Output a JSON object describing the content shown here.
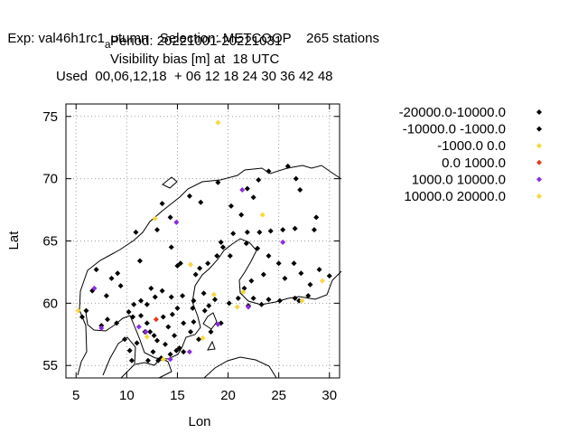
{
  "title": {
    "line1": "Exp: val46h1rc1",
    "line1_sub": "a",
    "line1_rest": "utumn   Selection: METCOOP    265 stations",
    "line2": "Period: 20221001-20221031",
    "line3": "Visibility bias [m] at  18 UTC",
    "line4": "Used  00,06,12,18  + 06 12 18 24 30 36 42 48"
  },
  "chart_data": {
    "type": "scatter",
    "xlabel": "Lon",
    "ylabel": "Lat",
    "xlim": [
      4,
      31
    ],
    "ylim": [
      54,
      76
    ],
    "xticks": [
      5,
      10,
      15,
      20,
      25,
      30
    ],
    "yticks": [
      55,
      60,
      65,
      70,
      75
    ],
    "grid": true,
    "legend_position": "right",
    "series": [
      {
        "name": "-20000.0-10000.0",
        "color": "#000000",
        "points": []
      },
      {
        "name": "-10000.0 -1000.0",
        "color": "#000000",
        "points": [
          [
            6.0,
            59.4
          ],
          [
            5.6,
            58.9
          ],
          [
            6.6,
            61.0
          ],
          [
            7.0,
            62.7
          ],
          [
            8.5,
            62.0
          ],
          [
            9.1,
            62.4
          ],
          [
            11.3,
            63.4
          ],
          [
            10.9,
            65.7
          ],
          [
            13.0,
            65.9
          ],
          [
            14.3,
            66.9
          ],
          [
            13.5,
            68.0
          ],
          [
            16.2,
            68.6
          ],
          [
            17.3,
            68.1
          ],
          [
            19.0,
            69.7
          ],
          [
            21.9,
            69.2
          ],
          [
            22.5,
            68.5
          ],
          [
            21.3,
            67.1
          ],
          [
            20.3,
            67.8
          ],
          [
            23.0,
            69.9
          ],
          [
            24.0,
            70.6
          ],
          [
            25.9,
            71.0
          ],
          [
            26.7,
            70.0
          ],
          [
            27.1,
            69.1
          ],
          [
            28.7,
            66.9
          ],
          [
            28.5,
            65.9
          ],
          [
            26.6,
            66.0
          ],
          [
            25.4,
            65.9
          ],
          [
            24.2,
            65.8
          ],
          [
            23.1,
            65.7
          ],
          [
            21.9,
            65.7
          ],
          [
            20.5,
            65.6
          ],
          [
            19.3,
            64.9
          ],
          [
            21.8,
            64.8
          ],
          [
            22.9,
            64.4
          ],
          [
            24.0,
            63.8
          ],
          [
            25.0,
            63.2
          ],
          [
            26.5,
            63.2
          ],
          [
            27.2,
            62.4
          ],
          [
            25.6,
            62.0
          ],
          [
            23.5,
            62.3
          ],
          [
            22.3,
            61.8
          ],
          [
            21.6,
            61.2
          ],
          [
            22.5,
            60.4
          ],
          [
            24.0,
            60.3
          ],
          [
            25.1,
            60.2
          ],
          [
            26.6,
            60.4
          ],
          [
            27.9,
            60.6
          ],
          [
            28.1,
            61.5
          ],
          [
            16.8,
            62.3
          ],
          [
            17.2,
            62.8
          ],
          [
            18.0,
            63.2
          ],
          [
            18.9,
            63.8
          ],
          [
            20.2,
            63.8
          ],
          [
            19.5,
            64.5
          ],
          [
            15.3,
            63.2
          ],
          [
            14.4,
            64.5
          ],
          [
            15.0,
            63.0
          ],
          [
            12.4,
            61.2
          ],
          [
            12.8,
            60.5
          ],
          [
            11.4,
            60.2
          ],
          [
            10.7,
            59.9
          ],
          [
            10.2,
            59.3
          ],
          [
            11.4,
            59.0
          ],
          [
            12.0,
            58.4
          ],
          [
            12.3,
            57.7
          ],
          [
            13.0,
            57.0
          ],
          [
            13.8,
            56.7
          ],
          [
            14.7,
            57.4
          ],
          [
            15.6,
            56.1
          ],
          [
            15.2,
            56.4
          ],
          [
            14.3,
            55.9
          ],
          [
            13.4,
            55.6
          ],
          [
            12.6,
            56.1
          ],
          [
            12.1,
            55.4
          ],
          [
            10.5,
            55.4
          ],
          [
            10.3,
            56.2
          ],
          [
            9.8,
            57.1
          ],
          [
            11.0,
            56.8
          ],
          [
            12.7,
            57.4
          ],
          [
            11.8,
            57.7
          ],
          [
            14.1,
            58.1
          ],
          [
            13.6,
            58.9
          ],
          [
            14.5,
            59.1
          ],
          [
            15.6,
            58.4
          ],
          [
            16.6,
            58.5
          ],
          [
            15.0,
            59.6
          ],
          [
            16.5,
            59.6
          ],
          [
            17.7,
            59.4
          ],
          [
            18.1,
            59.8
          ],
          [
            18.7,
            60.3
          ],
          [
            17.6,
            60.8
          ],
          [
            16.6,
            60.2
          ],
          [
            15.5,
            60.6
          ],
          [
            14.4,
            60.5
          ],
          [
            13.5,
            61.0
          ],
          [
            12.0,
            59.9
          ],
          [
            9.4,
            61.4
          ],
          [
            8.0,
            60.6
          ],
          [
            7.5,
            58.2
          ],
          [
            8.1,
            58.7
          ],
          [
            9.0,
            58.4
          ],
          [
            10.6,
            58.9
          ],
          [
            13.1,
            55.4
          ],
          [
            14.9,
            56.2
          ],
          [
            16.3,
            57.7
          ],
          [
            17.1,
            57.1
          ],
          [
            18.3,
            57.7
          ],
          [
            19.3,
            58.4
          ],
          [
            20.1,
            60.0
          ],
          [
            21.0,
            60.4
          ],
          [
            22.0,
            59.8
          ],
          [
            23.3,
            59.9
          ],
          [
            27.0,
            60.2
          ],
          [
            29.0,
            62.7
          ],
          [
            30.0,
            62.2
          ]
        ]
      },
      {
        "name": "-1000.0 0.0",
        "color": "#f7d73b",
        "points": [
          [
            19.0,
            74.5
          ],
          [
            12.8,
            66.8
          ],
          [
            23.4,
            67.1
          ],
          [
            16.3,
            63.1
          ],
          [
            20.9,
            59.7
          ],
          [
            21.5,
            60.9
          ],
          [
            29.3,
            61.8
          ],
          [
            27.3,
            60.2
          ],
          [
            17.5,
            57.2
          ],
          [
            13.6,
            55.5
          ],
          [
            12.0,
            57.3
          ],
          [
            5.2,
            59.4
          ],
          [
            18.6,
            60.7
          ]
        ]
      },
      {
        "name": "0.0 1000.0",
        "color": "#e03c1e",
        "points": [
          [
            12.9,
            58.7
          ]
        ]
      },
      {
        "name": "1000.0 10000.0",
        "color": "#8a2be2",
        "points": [
          [
            6.8,
            61.2
          ],
          [
            7.5,
            58.0
          ],
          [
            11.2,
            58.1
          ],
          [
            14.9,
            66.5
          ],
          [
            21.4,
            69.1
          ],
          [
            25.4,
            64.9
          ],
          [
            19.0,
            58.3
          ],
          [
            16.2,
            56.1
          ],
          [
            14.3,
            55.5
          ],
          [
            11.9,
            57.7
          ],
          [
            22.0,
            59.7
          ]
        ]
      },
      {
        "name": "10000.0 20000.0",
        "color": "#f7d73b",
        "points": []
      }
    ]
  }
}
